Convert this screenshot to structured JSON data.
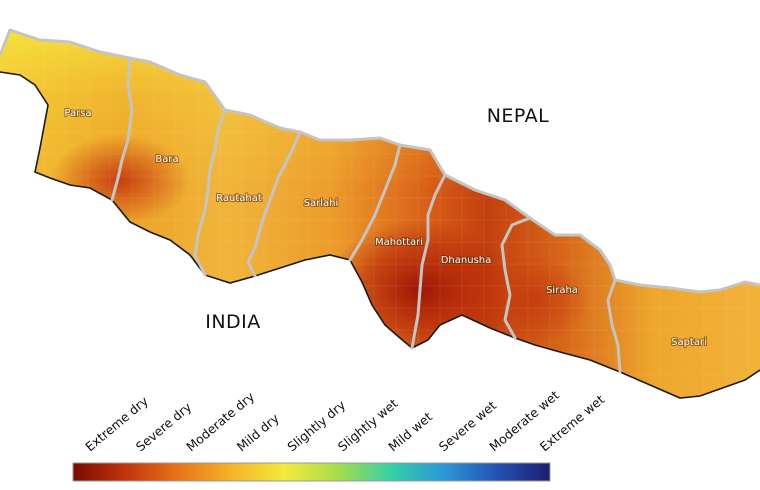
{
  "map": {
    "countries": {
      "north": "NEPAL",
      "south": "INDIA"
    },
    "districts": [
      {
        "name": "Parsa",
        "condition": "Moderate dry"
      },
      {
        "name": "Bara",
        "condition": "Severe dry"
      },
      {
        "name": "Rautahat",
        "condition": "Mild dry"
      },
      {
        "name": "Sarlahi",
        "condition": "Moderate dry"
      },
      {
        "name": "Mahottari",
        "condition": "Severe dry"
      },
      {
        "name": "Dhanusha",
        "condition": "Extreme dry"
      },
      {
        "name": "Siraha",
        "condition": "Severe dry"
      },
      {
        "name": "Saptari",
        "condition": "Moderate dry"
      }
    ],
    "colors": {
      "boundary": "#c4c4c4",
      "outline": "#1a1a1a"
    }
  },
  "legend": {
    "classes": [
      "Extreme dry",
      "Severe dry",
      "Moderate dry",
      "Mild dry",
      "Slightly dry",
      "Slightly wet",
      "Mild wet",
      "Severe wet",
      "Moderate wet",
      "Extreme wet"
    ],
    "gradient": [
      "#7a0a00",
      "#c1350c",
      "#e8741a",
      "#f4b429",
      "#f4e93c",
      "#a6dd4c",
      "#36cfa6",
      "#2a98d6",
      "#2451b4",
      "#1a1f6e"
    ]
  }
}
